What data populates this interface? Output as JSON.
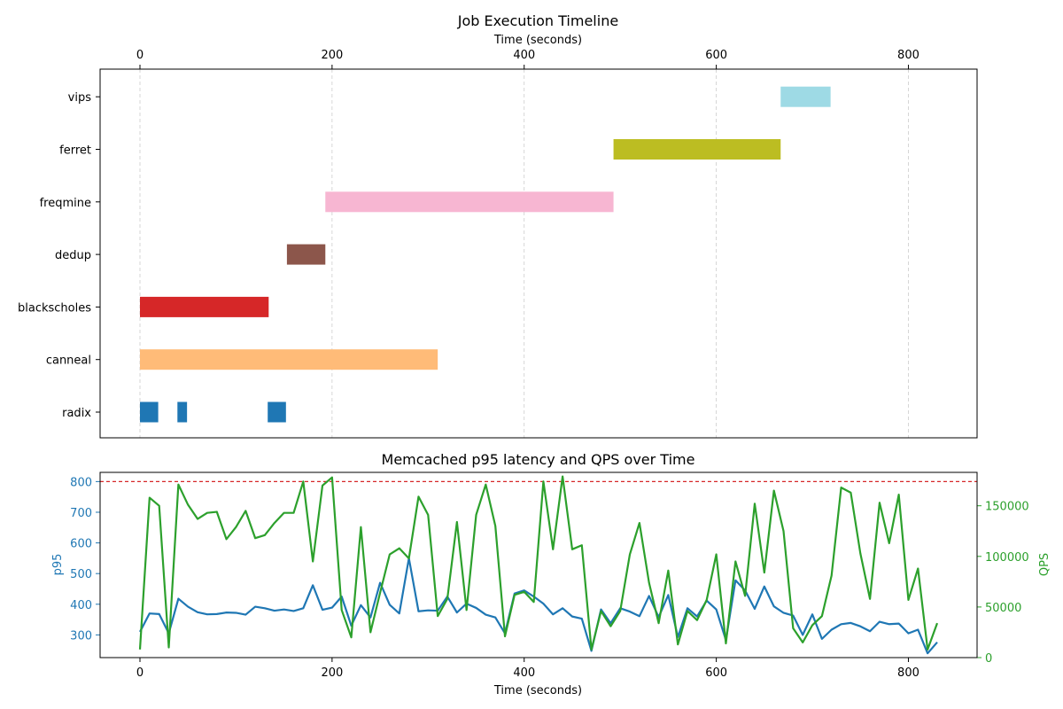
{
  "chart_data": [
    {
      "type": "gantt",
      "title": "Job Execution Timeline",
      "xlabel": "Time (seconds)",
      "xaxis_position": "top",
      "xlim": [
        -41.5,
        871.5
      ],
      "xticks": [
        0,
        200,
        400,
        600,
        800
      ],
      "grid": "x, dashed",
      "jobs": [
        "radix",
        "canneal",
        "blackscholes",
        "dedup",
        "freqmine",
        "ferret",
        "vips"
      ],
      "segments": [
        {
          "job": "radix",
          "start": 0,
          "end": 19,
          "color": "#1f77b4"
        },
        {
          "job": "radix",
          "start": 39,
          "end": 49,
          "color": "#1f77b4"
        },
        {
          "job": "radix",
          "start": 133,
          "end": 152,
          "color": "#1f77b4"
        },
        {
          "job": "canneal",
          "start": 0,
          "end": 310,
          "color": "#ffbb78"
        },
        {
          "job": "blackscholes",
          "start": 0,
          "end": 134,
          "color": "#d62728"
        },
        {
          "job": "dedup",
          "start": 153,
          "end": 193,
          "color": "#8c564b"
        },
        {
          "job": "freqmine",
          "start": 193,
          "end": 493,
          "color": "#f7b6d2"
        },
        {
          "job": "ferret",
          "start": 493,
          "end": 667,
          "color": "#bcbd22"
        },
        {
          "job": "vips",
          "start": 667,
          "end": 719,
          "color": "#9edae5"
        }
      ]
    },
    {
      "type": "line",
      "title": "Memcached p95 latency and QPS over Time",
      "xlabel": "Time (seconds)",
      "xlim": [
        -41.5,
        871.5
      ],
      "xticks": [
        0,
        200,
        400,
        600,
        800
      ],
      "y_left": {
        "label": "p95",
        "ylim": [
          226,
          830
        ],
        "ticks": [
          300,
          400,
          500,
          600,
          700,
          800
        ],
        "color": "#1f77b4"
      },
      "y_right": {
        "label": "QPS",
        "ylim": [
          0,
          183000
        ],
        "ticks": [
          0,
          50000,
          100000,
          150000
        ],
        "color": "#2ca02c"
      },
      "reference_line": {
        "axis": "left",
        "value": 800,
        "style": "dashed",
        "color": "#d62728"
      },
      "x": [
        0,
        10,
        20,
        30,
        40,
        50,
        60,
        70,
        80,
        90,
        100,
        110,
        120,
        130,
        140,
        150,
        160,
        170,
        180,
        190,
        200,
        210,
        220,
        230,
        240,
        250,
        260,
        270,
        280,
        290,
        300,
        310,
        320,
        330,
        340,
        350,
        360,
        370,
        380,
        390,
        400,
        410,
        420,
        430,
        440,
        450,
        460,
        470,
        480,
        490,
        500,
        510,
        520,
        530,
        540,
        550,
        560,
        570,
        580,
        590,
        600,
        610,
        620,
        630,
        640,
        650,
        660,
        670,
        680,
        690,
        700,
        710,
        720,
        730,
        740,
        750,
        760,
        770,
        780,
        790,
        800,
        810,
        820,
        830
      ],
      "series": [
        {
          "name": "p95",
          "axis": "left",
          "color": "#1f77b4",
          "values": [
            310,
            370,
            368,
            305,
            418,
            392,
            374,
            367,
            368,
            373,
            372,
            366,
            392,
            387,
            379,
            383,
            378,
            387,
            462,
            382,
            389,
            425,
            330,
            397,
            357,
            470,
            398,
            370,
            550,
            377,
            380,
            379,
            425,
            373,
            402,
            388,
            366,
            357,
            305,
            435,
            445,
            425,
            402,
            367,
            387,
            360,
            353,
            248,
            383,
            338,
            387,
            376,
            361,
            427,
            358,
            430,
            293,
            387,
            360,
            412,
            383,
            283,
            478,
            445,
            385,
            458,
            393,
            372,
            363,
            300,
            367,
            287,
            317,
            335,
            339,
            328,
            312,
            343,
            335,
            337,
            305,
            317,
            240,
            276
          ]
        },
        {
          "name": "QPS",
          "axis": "right",
          "color": "#2ca02c",
          "values": [
            8000,
            158000,
            150000,
            10000,
            171000,
            151000,
            137000,
            143000,
            144000,
            117000,
            129000,
            145000,
            118000,
            121000,
            133000,
            143000,
            143000,
            174000,
            95000,
            170000,
            178000,
            47000,
            20000,
            129000,
            25000,
            64000,
            102000,
            108000,
            98000,
            159000,
            141000,
            41000,
            58000,
            134000,
            47000,
            141000,
            171000,
            130000,
            21000,
            62000,
            65000,
            55000,
            174000,
            107000,
            179000,
            107000,
            111000,
            8000,
            46000,
            31000,
            46000,
            102000,
            133000,
            74000,
            34000,
            86000,
            13000,
            46000,
            37000,
            57000,
            102000,
            14000,
            95000,
            61000,
            152000,
            84000,
            165000,
            125000,
            29000,
            15000,
            32000,
            41000,
            81000,
            168000,
            163000,
            103000,
            58000,
            153000,
            113000,
            161000,
            57000,
            88000,
            8000,
            34000
          ]
        }
      ]
    }
  ]
}
